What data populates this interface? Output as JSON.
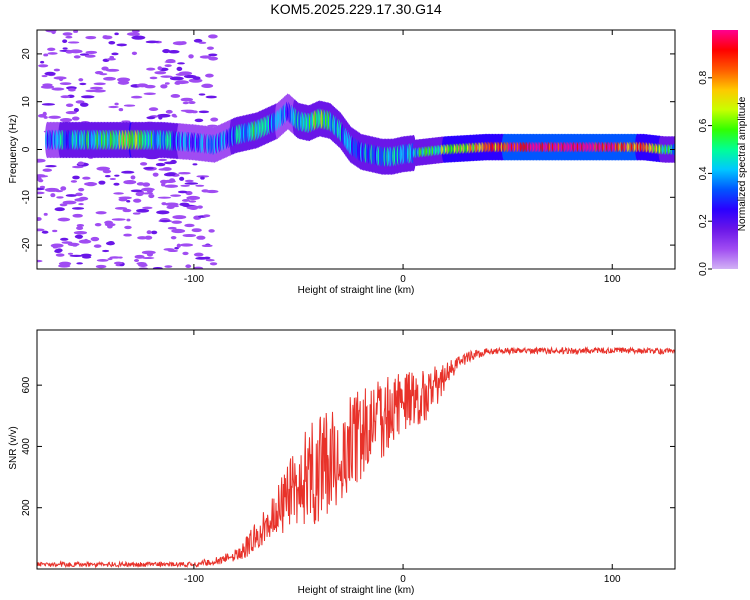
{
  "title": "KOM5.2025.229.17.30.G14",
  "colors": {
    "snr_line": "#e8322a",
    "axes": "#000000",
    "colormap": [
      "#d2b2f5",
      "#a04cf2",
      "#6a16e8",
      "#2a00ff",
      "#0056ff",
      "#00c8ff",
      "#00ff96",
      "#32ff00",
      "#c8ff00",
      "#ffc800",
      "#ff5a00",
      "#ff0000",
      "#ff0090"
    ]
  },
  "chart_data": [
    {
      "type": "heatmap",
      "name": "spectrogram",
      "xlabel": "Height of straight line (km)",
      "ylabel": "Frequency (Hz)",
      "xlim": [
        -175,
        130
      ],
      "ylim": [
        -25,
        25
      ],
      "xticks": [
        -100,
        0,
        100
      ],
      "yticks": [
        -20,
        -10,
        0,
        10,
        20
      ],
      "xtick_labels": [
        "-100",
        "0",
        "100"
      ],
      "ytick_labels": [
        "-20",
        "-10",
        "0",
        "10",
        "20"
      ],
      "colorbar": {
        "label": "Normalized spectral amplitude",
        "range": [
          0,
          1
        ],
        "ticks": [
          0.0,
          0.2,
          0.4,
          0.6,
          0.8
        ],
        "tick_labels": [
          "0.0",
          "0.2",
          "0.4",
          "0.6",
          "0.8"
        ]
      },
      "ridge": {
        "x": [
          -170,
          -150,
          -130,
          -115,
          -100,
          -90,
          -80,
          -70,
          -60,
          -55,
          -50,
          -45,
          -40,
          -35,
          -30,
          -25,
          -20,
          -15,
          -10,
          -5,
          0,
          10,
          20,
          40,
          60,
          80,
          100,
          115,
          125,
          130
        ],
        "freq": [
          2,
          2,
          2,
          2,
          1.5,
          1,
          3,
          4,
          6,
          8,
          6,
          5.5,
          6.5,
          6,
          4,
          1,
          -0.5,
          -1,
          -1.5,
          -1.5,
          -1,
          -0.5,
          0,
          0.5,
          0.5,
          0.5,
          0.5,
          0.5,
          0,
          0
        ],
        "amplitude": [
          0.32,
          0.45,
          0.6,
          0.42,
          0.3,
          0.28,
          0.38,
          0.48,
          0.35,
          0.3,
          0.4,
          0.45,
          0.55,
          0.5,
          0.42,
          0.36,
          0.4,
          0.38,
          0.42,
          0.4,
          0.4,
          0.48,
          0.6,
          0.75,
          0.95,
          1.0,
          0.95,
          0.8,
          0.55,
          0.4
        ]
      },
      "noise_extent_km": [
        -175,
        -90
      ]
    },
    {
      "type": "line",
      "name": "snr",
      "xlabel": "Height of straight line (km)",
      "ylabel": "SNR (v/v)",
      "xlim": [
        -175,
        130
      ],
      "ylim": [
        0,
        780
      ],
      "xticks": [
        -100,
        0,
        100
      ],
      "yticks": [
        200,
        400,
        600
      ],
      "xtick_labels": [
        "-100",
        "0",
        "100"
      ],
      "ytick_labels": [
        "200",
        "400",
        "600"
      ],
      "envelope": {
        "x": [
          -175,
          -100,
          -90,
          -80,
          -75,
          -70,
          -65,
          -60,
          -55,
          -50,
          -45,
          -40,
          -35,
          -30,
          -25,
          -20,
          -15,
          -10,
          -5,
          0,
          5,
          10,
          15,
          20,
          25,
          30,
          35,
          40,
          50,
          60,
          80,
          100,
          120,
          130
        ],
        "y": [
          15,
          15,
          25,
          45,
          70,
          110,
          150,
          190,
          230,
          270,
          300,
          330,
          355,
          385,
          410,
          440,
          470,
          495,
          510,
          520,
          540,
          560,
          590,
          630,
          660,
          690,
          700,
          710,
          712,
          712,
          712,
          712,
          712,
          712
        ]
      },
      "noise_amplitude": {
        "x": [
          -175,
          -100,
          -80,
          -60,
          -50,
          -40,
          -20,
          0,
          15,
          25,
          40,
          130
        ],
        "y": [
          8,
          8,
          20,
          80,
          150,
          180,
          150,
          120,
          70,
          25,
          10,
          10
        ]
      }
    }
  ]
}
